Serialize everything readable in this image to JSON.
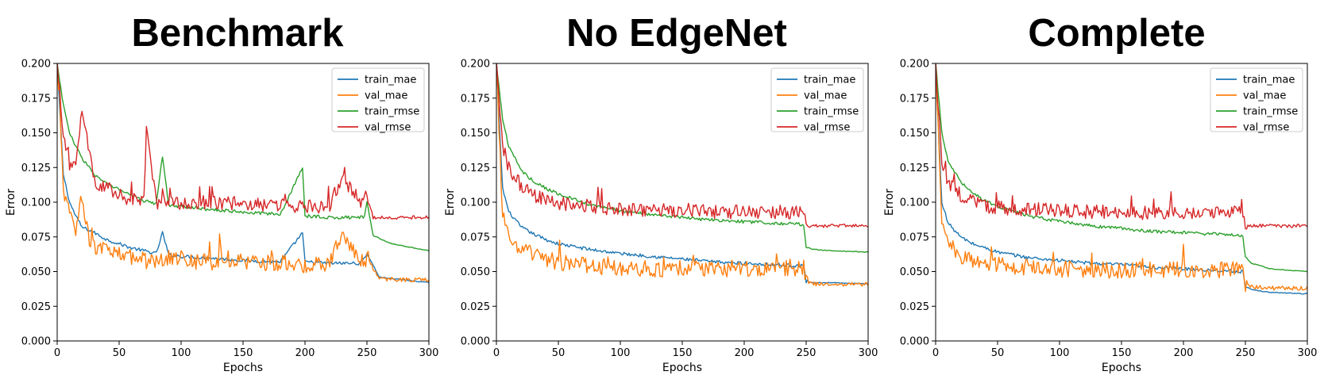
{
  "chart_data": [
    {
      "type": "line",
      "title": "Benchmark",
      "xlabel": "Epochs",
      "ylabel": "Error",
      "xlim": [
        0,
        300
      ],
      "ylim": [
        0,
        0.2
      ],
      "xticks": [
        "0",
        "50",
        "100",
        "150",
        "200",
        "250",
        "300"
      ],
      "yticks": [
        "0.000",
        "0.025",
        "0.050",
        "0.075",
        "0.100",
        "0.125",
        "0.150",
        "0.175",
        "0.200"
      ],
      "legend_position": "top-right",
      "grid": false,
      "series": [
        {
          "name": "train_mae",
          "color": "#1f77b4",
          "x": [
            0,
            5,
            10,
            15,
            20,
            30,
            40,
            50,
            60,
            70,
            80,
            85,
            90,
            100,
            120,
            150,
            180,
            198,
            200,
            220,
            245,
            250,
            260,
            280,
            300
          ],
          "y": [
            0.2,
            0.12,
            0.1,
            0.09,
            0.082,
            0.078,
            0.073,
            0.07,
            0.067,
            0.065,
            0.063,
            0.078,
            0.062,
            0.061,
            0.06,
            0.058,
            0.057,
            0.078,
            0.057,
            0.056,
            0.056,
            0.063,
            0.046,
            0.044,
            0.042
          ]
        },
        {
          "name": "val_mae",
          "color": "#ff7f0e",
          "x": [
            0,
            5,
            10,
            15,
            20,
            25,
            30,
            40,
            50,
            60,
            70,
            80,
            90,
            100,
            120,
            150,
            180,
            200,
            220,
            230,
            245,
            250,
            260,
            280,
            300
          ],
          "y": [
            0.2,
            0.11,
            0.09,
            0.08,
            0.103,
            0.075,
            0.068,
            0.065,
            0.062,
            0.06,
            0.058,
            0.058,
            0.06,
            0.058,
            0.057,
            0.057,
            0.056,
            0.055,
            0.055,
            0.08,
            0.057,
            0.06,
            0.045,
            0.044,
            0.044
          ]
        },
        {
          "name": "train_rmse",
          "color": "#2ca02c",
          "x": [
            0,
            5,
            10,
            15,
            20,
            30,
            40,
            50,
            60,
            70,
            80,
            85,
            90,
            100,
            120,
            150,
            180,
            198,
            200,
            220,
            248,
            250,
            255,
            270,
            300
          ],
          "y": [
            0.2,
            0.17,
            0.15,
            0.14,
            0.132,
            0.12,
            0.113,
            0.109,
            0.105,
            0.101,
            0.099,
            0.133,
            0.098,
            0.097,
            0.095,
            0.093,
            0.091,
            0.125,
            0.09,
            0.089,
            0.089,
            0.1,
            0.076,
            0.07,
            0.065
          ]
        },
        {
          "name": "val_rmse",
          "color": "#d62728",
          "x": [
            0,
            5,
            10,
            15,
            20,
            30,
            40,
            50,
            60,
            70,
            72,
            80,
            90,
            100,
            120,
            150,
            180,
            200,
            220,
            230,
            245,
            250,
            255,
            270,
            300
          ],
          "y": [
            0.2,
            0.15,
            0.125,
            0.13,
            0.165,
            0.115,
            0.11,
            0.105,
            0.102,
            0.1,
            0.155,
            0.1,
            0.1,
            0.099,
            0.1,
            0.099,
            0.098,
            0.097,
            0.097,
            0.118,
            0.1,
            0.104,
            0.089,
            0.089,
            0.089
          ]
        }
      ]
    },
    {
      "type": "line",
      "title": "No EdgeNet",
      "xlabel": "Epochs",
      "ylabel": "Error",
      "xlim": [
        0,
        300
      ],
      "ylim": [
        0,
        0.2
      ],
      "xticks": [
        "0",
        "50",
        "100",
        "150",
        "200",
        "250",
        "300"
      ],
      "yticks": [
        "0.000",
        "0.025",
        "0.050",
        "0.075",
        "0.100",
        "0.125",
        "0.150",
        "0.175",
        "0.200"
      ],
      "legend_position": "top-right",
      "grid": false,
      "series": [
        {
          "name": "train_mae",
          "color": "#1f77b4",
          "x": [
            0,
            5,
            10,
            20,
            30,
            40,
            50,
            75,
            100,
            125,
            150,
            175,
            200,
            225,
            248,
            250,
            255,
            270,
            300
          ],
          "y": [
            0.2,
            0.11,
            0.093,
            0.082,
            0.077,
            0.073,
            0.07,
            0.066,
            0.063,
            0.061,
            0.059,
            0.057,
            0.056,
            0.055,
            0.054,
            0.043,
            0.042,
            0.042,
            0.041
          ]
        },
        {
          "name": "val_mae",
          "color": "#ff7f0e",
          "x": [
            0,
            5,
            10,
            20,
            30,
            40,
            50,
            75,
            100,
            125,
            150,
            175,
            200,
            225,
            248,
            250,
            255,
            270,
            300
          ],
          "y": [
            0.2,
            0.09,
            0.075,
            0.066,
            0.062,
            0.059,
            0.057,
            0.054,
            0.053,
            0.052,
            0.052,
            0.052,
            0.052,
            0.052,
            0.053,
            0.042,
            0.041,
            0.041,
            0.041
          ]
        },
        {
          "name": "train_rmse",
          "color": "#2ca02c",
          "x": [
            0,
            5,
            10,
            20,
            30,
            40,
            50,
            75,
            100,
            125,
            150,
            175,
            200,
            225,
            248,
            250,
            255,
            270,
            300
          ],
          "y": [
            0.2,
            0.16,
            0.14,
            0.123,
            0.115,
            0.11,
            0.106,
            0.098,
            0.094,
            0.091,
            0.089,
            0.087,
            0.086,
            0.085,
            0.084,
            0.068,
            0.066,
            0.065,
            0.064
          ]
        },
        {
          "name": "val_rmse",
          "color": "#d62728",
          "x": [
            0,
            5,
            10,
            20,
            30,
            40,
            50,
            75,
            100,
            125,
            150,
            175,
            200,
            225,
            248,
            250,
            255,
            270,
            300
          ],
          "y": [
            0.2,
            0.14,
            0.125,
            0.112,
            0.105,
            0.101,
            0.099,
            0.097,
            0.095,
            0.094,
            0.094,
            0.093,
            0.093,
            0.093,
            0.093,
            0.083,
            0.083,
            0.083,
            0.083
          ]
        }
      ]
    },
    {
      "type": "line",
      "title": "Complete",
      "xlabel": "Epochs",
      "ylabel": "Error",
      "xlim": [
        0,
        300
      ],
      "ylim": [
        0,
        0.2
      ],
      "xticks": [
        "0",
        "50",
        "100",
        "150",
        "200",
        "250",
        "300"
      ],
      "yticks": [
        "0.000",
        "0.025",
        "0.050",
        "0.075",
        "0.100",
        "0.125",
        "0.150",
        "0.175",
        "0.200"
      ],
      "legend_position": "top-right",
      "grid": false,
      "series": [
        {
          "name": "train_mae",
          "color": "#1f77b4",
          "x": [
            0,
            5,
            10,
            20,
            30,
            40,
            50,
            75,
            100,
            125,
            150,
            175,
            200,
            225,
            248,
            250,
            255,
            270,
            300
          ],
          "y": [
            0.2,
            0.1,
            0.085,
            0.075,
            0.07,
            0.067,
            0.064,
            0.06,
            0.058,
            0.056,
            0.055,
            0.053,
            0.052,
            0.051,
            0.05,
            0.039,
            0.037,
            0.035,
            0.034
          ]
        },
        {
          "name": "val_mae",
          "color": "#ff7f0e",
          "x": [
            0,
            5,
            10,
            20,
            30,
            40,
            50,
            75,
            100,
            125,
            150,
            175,
            200,
            225,
            248,
            250,
            255,
            270,
            300
          ],
          "y": [
            0.2,
            0.085,
            0.07,
            0.062,
            0.058,
            0.056,
            0.055,
            0.053,
            0.052,
            0.051,
            0.051,
            0.051,
            0.051,
            0.051,
            0.052,
            0.04,
            0.039,
            0.038,
            0.038
          ]
        },
        {
          "name": "train_rmse",
          "color": "#2ca02c",
          "x": [
            0,
            5,
            10,
            20,
            30,
            40,
            50,
            75,
            100,
            125,
            150,
            175,
            200,
            225,
            248,
            250,
            255,
            270,
            300
          ],
          "y": [
            0.2,
            0.15,
            0.13,
            0.115,
            0.107,
            0.101,
            0.097,
            0.09,
            0.086,
            0.083,
            0.081,
            0.079,
            0.078,
            0.077,
            0.076,
            0.06,
            0.056,
            0.052,
            0.05
          ]
        },
        {
          "name": "val_rmse",
          "color": "#d62728",
          "x": [
            0,
            5,
            10,
            20,
            30,
            40,
            50,
            75,
            100,
            125,
            150,
            175,
            200,
            225,
            248,
            250,
            255,
            270,
            300
          ],
          "y": [
            0.2,
            0.13,
            0.115,
            0.105,
            0.1,
            0.097,
            0.096,
            0.095,
            0.094,
            0.093,
            0.093,
            0.092,
            0.092,
            0.092,
            0.093,
            0.083,
            0.083,
            0.083,
            0.083
          ]
        }
      ]
    }
  ]
}
